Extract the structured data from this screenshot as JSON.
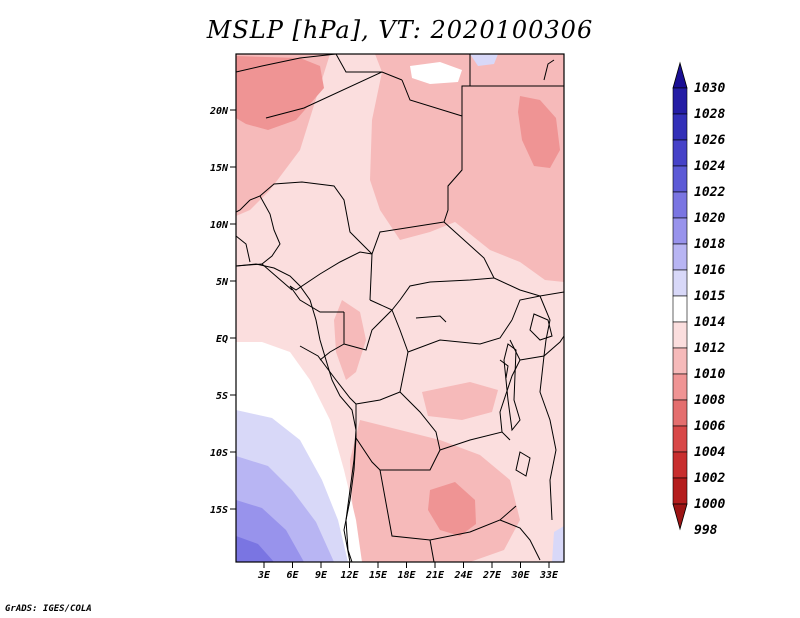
{
  "title": "MSLP [hPa], VT: 2020100306",
  "credit": "GrADS: IGES/COLA",
  "colors": {
    "c1030": "#1a0f94",
    "c1028": "#241da5",
    "c1026": "#322fb8",
    "c1024": "#4642c8",
    "c1022": "#5c5ad6",
    "c1020": "#7a75e2",
    "c1018": "#9893ec",
    "c1016": "#b8b5f3",
    "c1015": "#d8d8f8",
    "c1014": "#ffffff",
    "c1012": "#fbdede",
    "c1010": "#f6baba",
    "c1008": "#ef9494",
    "c1006": "#e46e6e",
    "c1004": "#d84848",
    "c1002": "#c82e2e",
    "c1000": "#b41d1d",
    "c998": "#9c1414",
    "border": "#000000"
  },
  "map": {
    "lat_ticks": [
      "20N",
      "15N",
      "10N",
      "5N",
      "EQ",
      "5S",
      "10S",
      "15S"
    ],
    "lon_ticks": [
      "3E",
      "6E",
      "9E",
      "12E",
      "15E",
      "18E",
      "21E",
      "24E",
      "27E",
      "30E",
      "33E"
    ]
  },
  "legend": {
    "levels": [
      "1030",
      "1028",
      "1026",
      "1024",
      "1022",
      "1020",
      "1018",
      "1016",
      "1015",
      "1014",
      "1012",
      "1010",
      "1008",
      "1006",
      "1004",
      "1002",
      "1000",
      "998"
    ]
  }
}
